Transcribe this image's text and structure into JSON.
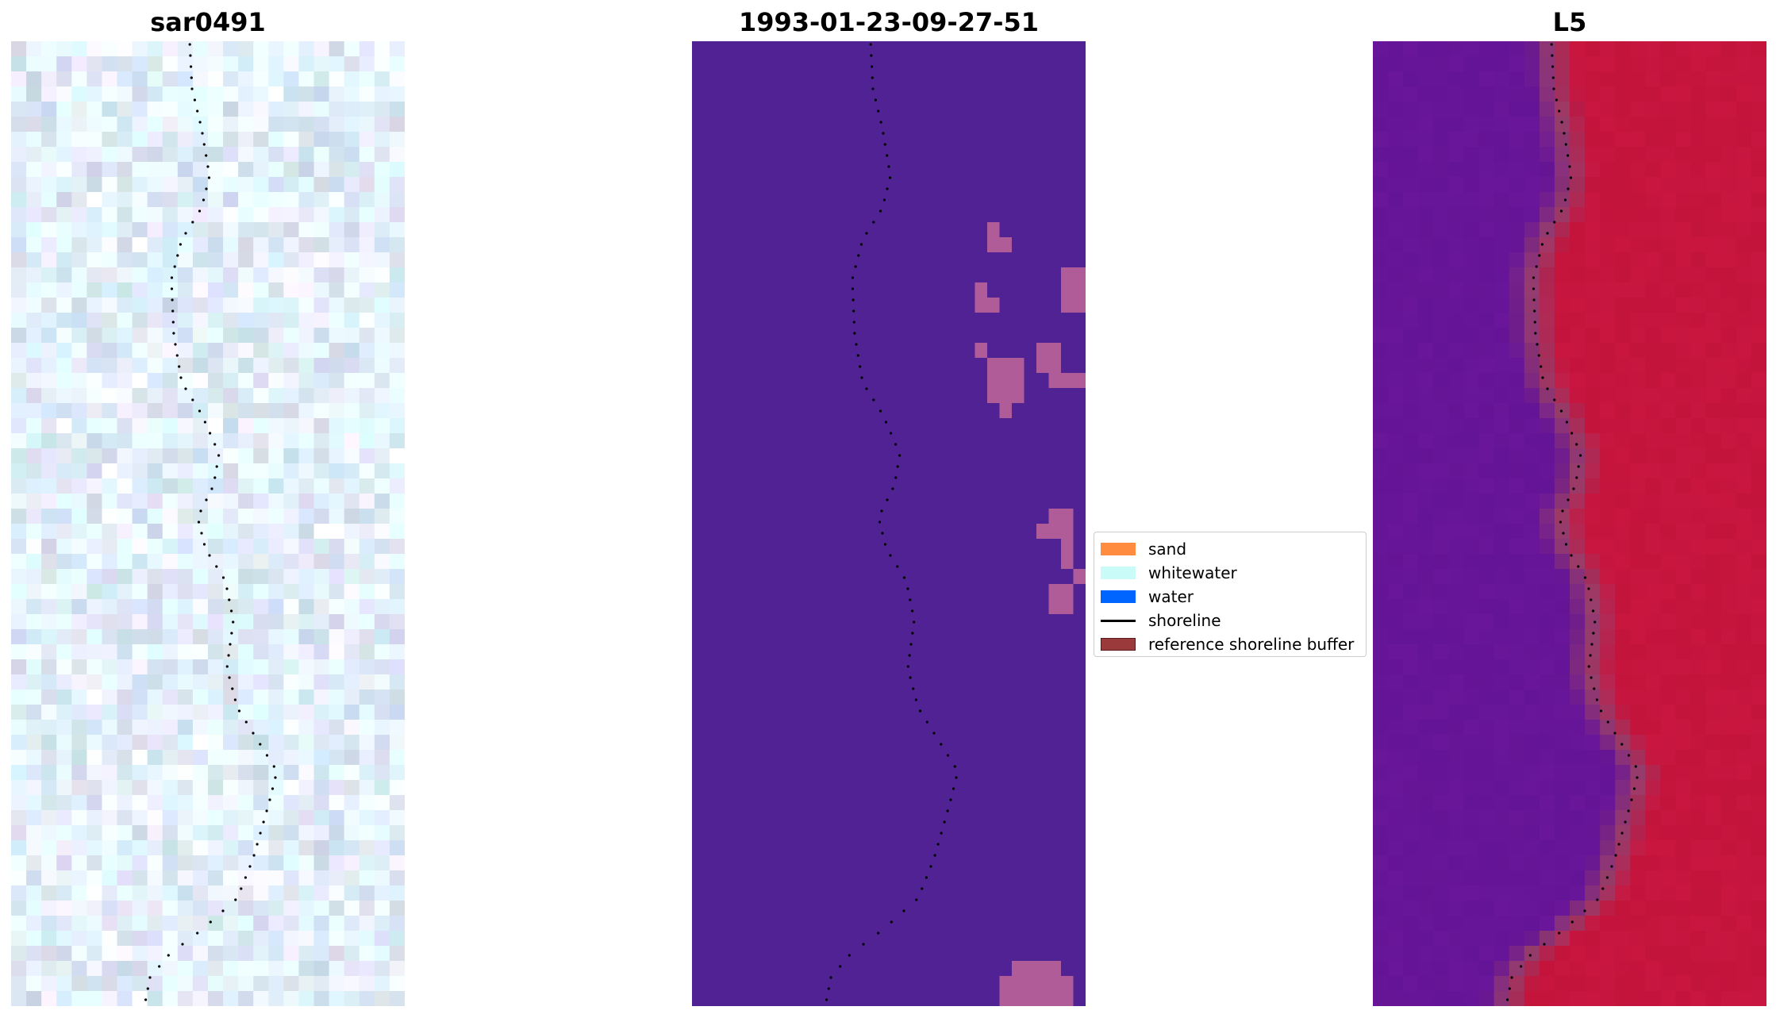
{
  "panels": [
    {
      "title": "sar0491",
      "kind": "rgb"
    },
    {
      "title": "1993-01-23-09-27-51",
      "kind": "classified"
    },
    {
      "title": "L5",
      "kind": "ndwi"
    }
  ],
  "legend": {
    "items": [
      {
        "label": "sand",
        "color": "#ff8c3f",
        "type": "patch"
      },
      {
        "label": "whitewater",
        "color": "#c9fbf9",
        "type": "patch"
      },
      {
        "label": "water",
        "color": "#0064ff",
        "type": "patch"
      },
      {
        "label": "shoreline",
        "color": "#000000",
        "type": "line"
      },
      {
        "label": "reference shoreline buffer",
        "color": "#9a3a3a",
        "type": "patch"
      }
    ]
  },
  "colors": {
    "classified_background": "#512294",
    "classified_patch": "#b05c98",
    "shoreline": "#000000"
  }
}
